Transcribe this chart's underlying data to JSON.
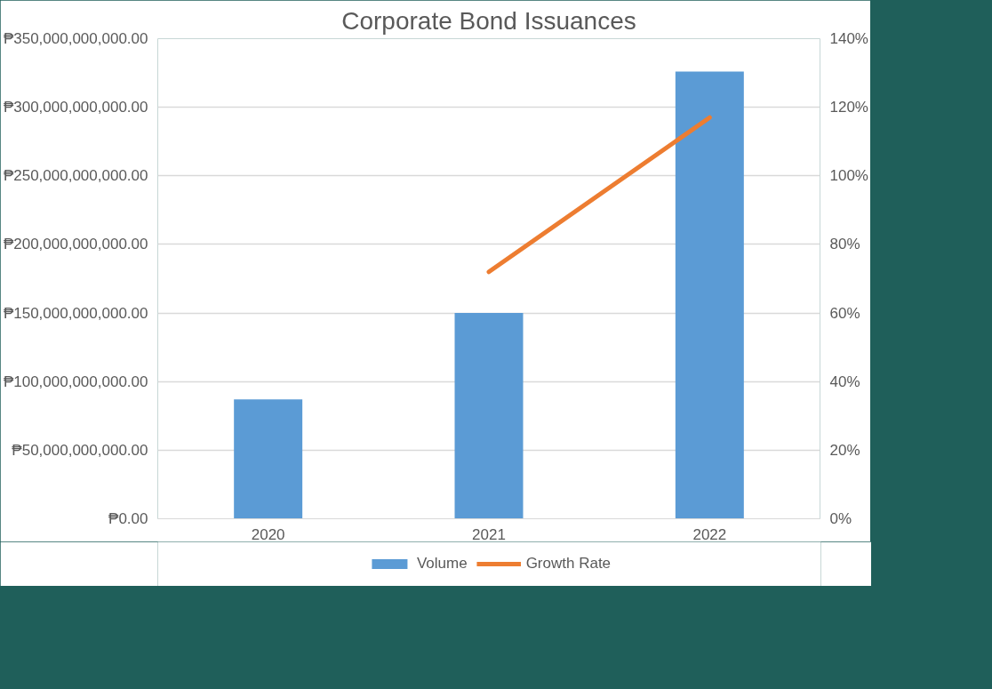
{
  "chart_data": {
    "type": "bar",
    "title": "Corporate Bond Issuances",
    "categories": [
      "2020",
      "2021",
      "2022"
    ],
    "series": [
      {
        "name": "Volume",
        "color": "#5b9bd5",
        "values": [
          87000000000,
          150000000000,
          326000000000
        ]
      },
      {
        "name": "Growth Rate",
        "type": "line",
        "axis": "y2",
        "color": "#ed7d31",
        "values": [
          null,
          72,
          117
        ]
      }
    ],
    "ylim": [
      0,
      350000000000
    ],
    "yticks": [
      {
        "value": 0,
        "label": "₱0.00"
      },
      {
        "value": 50000000000,
        "label": "₱50,000,000,000.00"
      },
      {
        "value": 100000000000,
        "label": "₱100,000,000,000.00"
      },
      {
        "value": 150000000000,
        "label": "₱150,000,000,000.00"
      },
      {
        "value": 200000000000,
        "label": "₱200,000,000,000.00"
      },
      {
        "value": 250000000000,
        "label": "₱250,000,000,000.00"
      },
      {
        "value": 300000000000,
        "label": "₱300,000,000,000.00"
      },
      {
        "value": 350000000000,
        "label": "₱350,000,000,000.00"
      }
    ],
    "y2lim": [
      0,
      140
    ],
    "y2ticks": [
      {
        "value": 0,
        "label": "0%"
      },
      {
        "value": 20,
        "label": "20%"
      },
      {
        "value": 40,
        "label": "40%"
      },
      {
        "value": 60,
        "label": "60%"
      },
      {
        "value": 80,
        "label": "80%"
      },
      {
        "value": 100,
        "label": "100%"
      },
      {
        "value": 120,
        "label": "120%"
      },
      {
        "value": 140,
        "label": "140%"
      }
    ],
    "grid": "y",
    "legend": "bottom"
  }
}
